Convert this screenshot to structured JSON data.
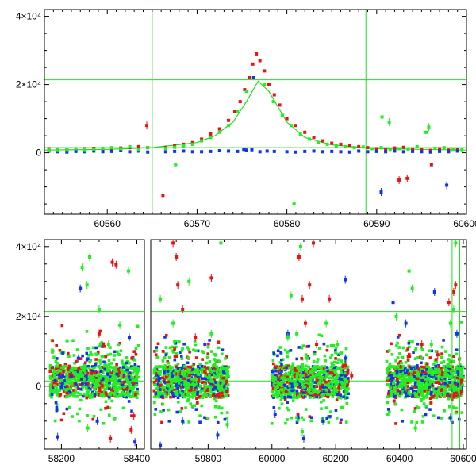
{
  "chart_data": [
    {
      "type": "scatter",
      "title": "",
      "xlabel": "",
      "ylabel": "",
      "xlim": [
        60553,
        60600
      ],
      "ylim": [
        -18000,
        42000
      ],
      "grid": false,
      "x_ticks": [
        60560,
        60570,
        60580,
        60590,
        60600
      ],
      "x_tick_labels": [
        "60560",
        "60570",
        "60580",
        "60590",
        "60600"
      ],
      "y_ticks": [
        0,
        20000,
        40000
      ],
      "y_tick_labels": [
        "0",
        "2×10⁴",
        "4×10⁴"
      ],
      "reference_lines": {
        "horizontal": [
          21400,
          1500
        ],
        "vertical": [
          60565,
          60588.8
        ]
      },
      "model_curve": {
        "color": "#22dd22",
        "x": [
          60553,
          60560,
          60565,
          60570,
          60572,
          60574,
          60575.5,
          60576.8,
          60578,
          60580,
          60582,
          60585,
          60590,
          60600
        ],
        "y": [
          800,
          1000,
          1500,
          3000,
          5000,
          9000,
          15000,
          21000,
          18000,
          9000,
          4500,
          2300,
          1200,
          800
        ]
      },
      "series": [
        {
          "color": "#ee1111",
          "x": [
            60553.5,
            60554.5,
            60555.5,
            60556.5,
            60557.5,
            60558.5,
            60559.5,
            60560.5,
            60561.5,
            60562.5,
            60563.5,
            60564.5,
            60566.5,
            60567.5,
            60568.5,
            60569.5,
            60570.5,
            60571.5,
            60572.5,
            60573.5,
            60574.2,
            60574.8,
            60575.3,
            60575.8,
            60576.2,
            60576.6,
            60577,
            60577.5,
            60578,
            60578.6,
            60579.2,
            60580,
            60581,
            60582,
            60583,
            60584,
            60585,
            60586,
            60587,
            60588,
            60589,
            60590,
            60591,
            60592,
            60593,
            60594,
            60595,
            60596,
            60597,
            60598,
            60599,
            60564.4,
            60566.2,
            60592.5,
            60593.4,
            60596.1
          ],
          "y": [
            1200,
            1100,
            900,
            1000,
            1200,
            1300,
            1100,
            1200,
            1400,
            1500,
            1800,
            1500,
            1600,
            2000,
            2500,
            3000,
            4000,
            5500,
            7000,
            9500,
            12000,
            15000,
            18500,
            22000,
            26000,
            29000,
            27000,
            24000,
            20000,
            17000,
            14000,
            10000,
            8000,
            6000,
            4500,
            3500,
            2800,
            2500,
            2200,
            1800,
            1500,
            1200,
            1000,
            1400,
            1600,
            1100,
            900,
            700,
            1200,
            800,
            1000,
            8000,
            -12500,
            -8000,
            -7500,
            -3500
          ]
        },
        {
          "color": "#1133ee",
          "x": [
            60553.5,
            60554.5,
            60555.5,
            60556.5,
            60557.5,
            60558.5,
            60559.5,
            60560.5,
            60561.5,
            60562.5,
            60563.5,
            60564.5,
            60566.5,
            60567.5,
            60568.5,
            60569.5,
            60570.5,
            60571.5,
            60572.5,
            60573.5,
            60574.5,
            60575.5,
            60576.3,
            60577,
            60577.8,
            60578.6,
            60580,
            60581,
            60582,
            60583,
            60584,
            60585,
            60586,
            60587,
            60588,
            60589,
            60590,
            60591,
            60592,
            60593,
            60594,
            60595,
            60596,
            60597,
            60598,
            60599,
            60575.2,
            60576.1,
            60590.5,
            60597.8
          ],
          "y": [
            500,
            300,
            200,
            400,
            300,
            500,
            300,
            400,
            600,
            300,
            500,
            200,
            300,
            400,
            500,
            300,
            300,
            400,
            600,
            500,
            400,
            800,
            22000,
            300,
            500,
            400,
            300,
            200,
            400,
            500,
            300,
            400,
            300,
            200,
            500,
            300,
            400,
            300,
            500,
            300,
            400,
            300,
            200,
            400,
            300,
            500,
            1000,
            900,
            -11500,
            -9500
          ]
        },
        {
          "color": "#22ee22",
          "x": [
            60553.5,
            60554.5,
            60555.5,
            60556.5,
            60557.5,
            60558.5,
            60559.5,
            60560.5,
            60561.5,
            60562.5,
            60563.5,
            60564.5,
            60566.5,
            60567.5,
            60568.5,
            60569.5,
            60570.5,
            60571.5,
            60572.5,
            60573.5,
            60574.5,
            60575.5,
            60577.5,
            60578.5,
            60579.5,
            60580.5,
            60581.5,
            60582.5,
            60583.5,
            60584.5,
            60585.5,
            60586.5,
            60587.5,
            60588.5,
            60589.5,
            60590.5,
            60591.5,
            60592.5,
            60593.5,
            60594.5,
            60595.5,
            60596.5,
            60597.5,
            60598.5,
            60599.5,
            60567.6,
            60580.8,
            60590.6,
            60591.4,
            60595.8
          ],
          "y": [
            800,
            900,
            1000,
            1200,
            900,
            1100,
            1300,
            1500,
            1200,
            1800,
            1000,
            1500,
            1300,
            1600,
            2000,
            2500,
            3500,
            4500,
            6000,
            8000,
            12000,
            18000,
            20000,
            15000,
            11000,
            8000,
            5500,
            4000,
            3000,
            2500,
            2000,
            1800,
            1500,
            1700,
            1200,
            1500,
            1000,
            1200,
            1100,
            1800,
            6000,
            1300,
            1500,
            1000,
            900,
            -3500,
            -15000,
            10500,
            9000,
            7500
          ]
        }
      ]
    },
    {
      "type": "scatter",
      "title": "",
      "xlabel": "",
      "ylabel": "",
      "broken_axis": true,
      "segments": [
        {
          "xlim": [
            58155,
            58420
          ],
          "ticks": [
            58200,
            58400
          ],
          "tick_labels": [
            "58200",
            "58400"
          ]
        },
        {
          "xlim": [
            59620,
            60610
          ],
          "ticks": [
            59800,
            60000,
            60200,
            60400,
            60600
          ],
          "tick_labels": [
            "59800",
            "60000",
            "60200",
            "60400",
            "60600"
          ]
        }
      ],
      "ylim": [
        -18000,
        42000
      ],
      "grid": false,
      "y_ticks": [
        0,
        20000,
        40000
      ],
      "y_tick_labels": [
        "0",
        "2×10⁴",
        "4×10⁴"
      ],
      "reference_lines": {
        "horizontal": [
          21400,
          1500
        ],
        "vertical": [
          60565,
          60588.8
        ]
      },
      "seasons": [
        {
          "x_start": 58170,
          "x_end": 58405
        },
        {
          "x_start": 59630,
          "x_end": 59865
        },
        {
          "x_start": 60000,
          "x_end": 60240
        },
        {
          "x_start": 60360,
          "x_end": 60600
        }
      ],
      "series": [
        {
          "color": "#ee1111",
          "x": [
            58215,
            58300,
            58335,
            58345,
            58387,
            58392,
            59690,
            59705,
            59720,
            59760,
            59810,
            60085,
            60105,
            60118,
            60130,
            60140,
            60180,
            60230,
            60470,
            60520,
            60555,
            60570,
            60576,
            60590,
            59700,
            60095,
            60250,
            58330,
            58385
          ],
          "y": [
            -2000,
            15000,
            35500,
            34800,
            8000,
            -8500,
            41000,
            29000,
            22000,
            14000,
            31000,
            37000,
            18000,
            29000,
            41000,
            12000,
            25000,
            6000,
            12000,
            9000,
            24000,
            27000,
            29000,
            -2000,
            37000,
            25000,
            3000,
            -15000,
            -12500
          ]
        },
        {
          "color": "#1133ee",
          "x": [
            58190,
            58245,
            58295,
            58380,
            58395,
            59650,
            59720,
            59790,
            59830,
            60010,
            60050,
            60100,
            60160,
            60230,
            60380,
            60420,
            60510,
            60560,
            60580,
            58250,
            60230
          ],
          "y": [
            -14500,
            8000,
            -10000,
            14000,
            -16000,
            -17000,
            -10000,
            12000,
            -14000,
            -8000,
            15000,
            -15000,
            -10000,
            30500,
            24000,
            18000,
            27000,
            -9000,
            15000,
            28000,
            8000
          ]
        },
        {
          "color": "#22ee22",
          "x": [
            58215,
            58255,
            58268,
            58275,
            58300,
            58325,
            58355,
            58378,
            59650,
            59690,
            59740,
            59810,
            59840,
            60050,
            60060,
            60078,
            60090,
            60110,
            60170,
            60205,
            60390,
            60430,
            60440,
            60500,
            60560,
            60570,
            60576,
            58270,
            59860,
            60095,
            60450
          ],
          "y": [
            13000,
            34000,
            29000,
            37000,
            22000,
            12000,
            17500,
            33000,
            25000,
            18000,
            30000,
            15000,
            41000,
            14000,
            26000,
            15000,
            40000,
            8000,
            18000,
            12000,
            20000,
            33000,
            28000,
            12000,
            18000,
            22000,
            41000,
            -12000,
            -11000,
            -13000,
            -12000
          ]
        }
      ]
    }
  ]
}
